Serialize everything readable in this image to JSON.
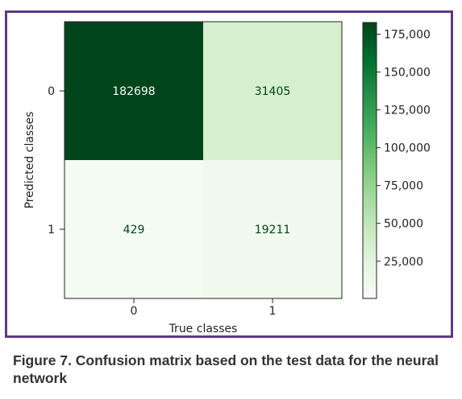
{
  "figure": {
    "caption": "Figure 7. Confusion matrix based on the test data for the neural network"
  },
  "chart_data": {
    "type": "heatmap",
    "xlabel": "True classes",
    "ylabel": "Predicted classes",
    "x_categories": [
      "0",
      "1"
    ],
    "y_categories": [
      "0",
      "1"
    ],
    "values": [
      [
        182698,
        31405
      ],
      [
        429,
        19211
      ]
    ],
    "colormap": "Greens",
    "colors": {
      "dark_cell": "#00441b",
      "mid_cell": "#d5efcf",
      "light_cell": "#f0f9ed",
      "lightest_cell": "#f4fbf2",
      "text_on_dark": "#f7fcf5",
      "text_on_light": "#00441b",
      "frame": "#5b3a88"
    },
    "colorbar": {
      "min": 429,
      "max": 182698,
      "ticks": [
        25000,
        50000,
        75000,
        100000,
        125000,
        150000,
        175000
      ],
      "tick_labels": [
        "25,000",
        "50,000",
        "75,000",
        "100,000",
        "125,000",
        "150,000",
        "175,000"
      ]
    },
    "grid": false
  }
}
